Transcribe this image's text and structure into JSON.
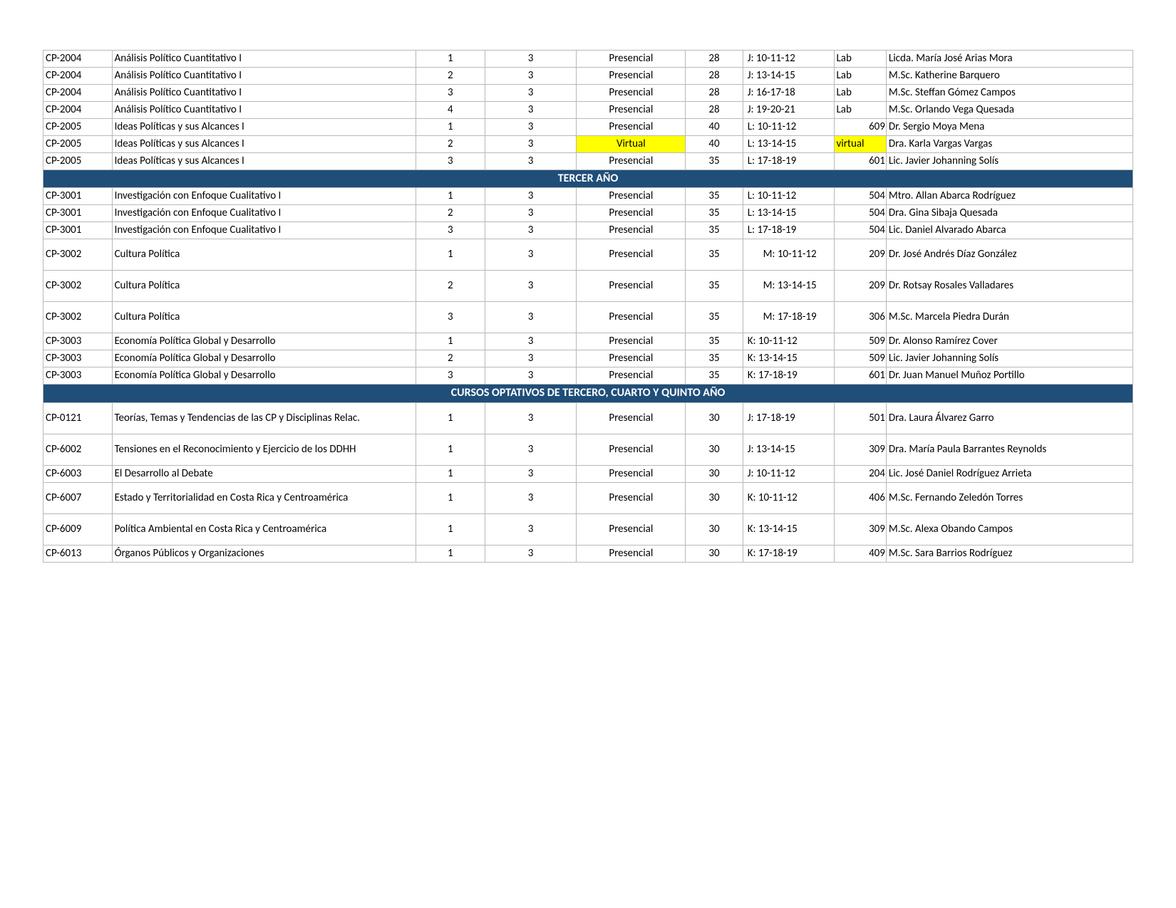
{
  "colors": {
    "section_bg": "#1f4e79",
    "section_fg": "#ffffff",
    "highlight_bg": "#ffff00",
    "border": "#b8b8b8",
    "text": "#000000",
    "page_bg": "#ffffff"
  },
  "typography": {
    "font_family": "Calibri, Arial, sans-serif",
    "base_fontsize_pt": 11,
    "header_fontsize_pt": 12,
    "header_weight": "bold"
  },
  "table": {
    "columns": [
      {
        "key": "code",
        "width_pct": 6.0,
        "align": "left"
      },
      {
        "key": "name",
        "width_pct": 26.5,
        "align": "left"
      },
      {
        "key": "group",
        "width_pct": 6.0,
        "align": "center"
      },
      {
        "key": "credits",
        "width_pct": 8.0,
        "align": "center"
      },
      {
        "key": "modality",
        "width_pct": 9.5,
        "align": "center"
      },
      {
        "key": "capacity",
        "width_pct": 5.0,
        "align": "center"
      },
      {
        "key": "schedule",
        "width_pct": 8.0,
        "align": "left"
      },
      {
        "key": "room",
        "width_pct": 4.5,
        "align": "right"
      },
      {
        "key": "instructor",
        "width_pct": 21.5,
        "align": "left"
      }
    ]
  },
  "rows": [
    {
      "code": "CP-2004",
      "name": "Análisis Político Cuantitativo I",
      "group": "1",
      "credits": "3",
      "modality": "Presencial",
      "capacity": "28",
      "schedule": "J: 10-11-12",
      "room": "Lab",
      "instructor": "Licda. María José Arias Mora",
      "room_is_lab": true
    },
    {
      "code": "CP-2004",
      "name": "Análisis Político Cuantitativo I",
      "group": "2",
      "credits": "3",
      "modality": "Presencial",
      "capacity": "28",
      "schedule": "J: 13-14-15",
      "room": "Lab",
      "instructor": "M.Sc. Katherine Barquero",
      "room_is_lab": true
    },
    {
      "code": "CP-2004",
      "name": "Análisis Político Cuantitativo I",
      "group": "3",
      "credits": "3",
      "modality": "Presencial",
      "capacity": "28",
      "schedule": "J: 16-17-18",
      "room": "Lab",
      "instructor": "M.Sc. Steffan Gómez Campos",
      "room_is_lab": true
    },
    {
      "code": "CP-2004",
      "name": "Análisis Político Cuantitativo I",
      "group": "4",
      "credits": "3",
      "modality": "Presencial",
      "capacity": "28",
      "schedule": "J: 19-20-21",
      "room": "Lab",
      "instructor": "M.Sc. Orlando Vega Quesada",
      "room_is_lab": true
    },
    {
      "code": "CP-2005",
      "name": "Ideas Políticas y sus Alcances I",
      "group": "1",
      "credits": "3",
      "modality": "Presencial",
      "capacity": "40",
      "schedule": "L: 10-11-12",
      "room": "609",
      "instructor": "Dr. Sergio Moya Mena"
    },
    {
      "code": "CP-2005",
      "name": "Ideas Políticas y sus Alcances I",
      "group": "2",
      "credits": "3",
      "modality": "Virtual",
      "modality_hl": true,
      "capacity": "40",
      "schedule": "L: 13-14-15",
      "room": "virtual",
      "room_hl": true,
      "room_is_lab": true,
      "instructor": "Dra. Karla Vargas Vargas"
    },
    {
      "code": "CP-2005",
      "name": "Ideas Políticas y sus Alcances I",
      "group": "3",
      "credits": "3",
      "modality": "Presencial",
      "capacity": "35",
      "schedule": "L: 17-18-19",
      "room": "601",
      "instructor": "Lic. Javier Johanning Solís"
    },
    {
      "section": "TERCER AÑO"
    },
    {
      "code": "CP-3001",
      "name": "Investigación con Enfoque Cualitativo I",
      "group": "1",
      "credits": "3",
      "modality": "Presencial",
      "capacity": "35",
      "schedule": "L: 10-11-12",
      "room": "504",
      "instructor": "Mtro. Allan Abarca Rodríguez"
    },
    {
      "code": "CP-3001",
      "name": "Investigación con Enfoque Cualitativo I",
      "group": "2",
      "credits": "3",
      "modality": "Presencial",
      "capacity": "35",
      "schedule": "L: 13-14-15",
      "room": "504",
      "instructor": "Dra. Gina Sibaja Quesada"
    },
    {
      "code": "CP-3001",
      "name": "Investigación con Enfoque Cualitativo I",
      "group": "3",
      "credits": "3",
      "modality": "Presencial",
      "capacity": "35",
      "schedule": "L: 17-18-19",
      "room": "504",
      "instructor": "Lic. Daniel Alvarado Abarca"
    },
    {
      "code": "CP-3002",
      "name": "Cultura Política",
      "group": "1",
      "credits": "3",
      "modality": "Presencial",
      "capacity": "35",
      "schedule": "M: 10-11-12",
      "room": "209",
      "instructor": "Dr. José Andrés Díaz González",
      "tall": true,
      "sched_center": true
    },
    {
      "code": "CP-3002",
      "name": "Cultura Política",
      "group": "2",
      "credits": "3",
      "modality": "Presencial",
      "capacity": "35",
      "schedule": "M: 13-14-15",
      "room": "209",
      "instructor": "Dr. Rotsay Rosales Valladares",
      "tall": true,
      "sched_center": true
    },
    {
      "code": "CP-3002",
      "name": "Cultura Política",
      "group": "3",
      "credits": "3",
      "modality": "Presencial",
      "capacity": "35",
      "schedule": "M: 17-18-19",
      "room": "306",
      "instructor": "M.Sc. Marcela Piedra Durán",
      "tall": true,
      "sched_center": true
    },
    {
      "code": "CP-3003",
      "name": "Economía Política Global y Desarrollo",
      "group": "1",
      "credits": "3",
      "modality": "Presencial",
      "capacity": "35",
      "schedule": "K: 10-11-12",
      "room": "509",
      "instructor": "Dr. Alonso Ramírez Cover"
    },
    {
      "code": "CP-3003",
      "name": "Economía Política Global y Desarrollo",
      "group": "2",
      "credits": "3",
      "modality": "Presencial",
      "capacity": "35",
      "schedule": "K: 13-14-15",
      "room": "509",
      "instructor": "Lic. Javier Johanning Solís"
    },
    {
      "code": "CP-3003",
      "name": "Economía Política Global y Desarrollo",
      "group": "3",
      "credits": "3",
      "modality": "Presencial",
      "capacity": "35",
      "schedule": "K: 17-18-19",
      "room": "601",
      "instructor": "Dr. Juan Manuel Muñoz Portillo"
    },
    {
      "section": "CURSOS OPTATIVOS DE TERCERO, CUARTO Y QUINTO AÑO"
    },
    {
      "code": "CP-0121",
      "name": "Teorías, Temas y Tendencias de las CP y Disciplinas Relac.",
      "group": "1",
      "credits": "3",
      "modality": "Presencial",
      "capacity": "30",
      "schedule": "J: 17-18-19",
      "room": "501",
      "instructor": "Dra. Laura Álvarez Garro",
      "tall": true
    },
    {
      "code": "CP-6002",
      "name": "Tensiones en el Reconocimiento y Ejercicio de los DDHH",
      "group": "1",
      "credits": "3",
      "modality": "Presencial",
      "capacity": "30",
      "schedule": "J: 13-14-15",
      "room": "309",
      "instructor": "Dra. María Paula Barrantes Reynolds",
      "tall": true
    },
    {
      "code": "CP-6003",
      "name": "El Desarrollo al Debate",
      "group": "1",
      "credits": "3",
      "modality": "Presencial",
      "capacity": "30",
      "schedule": "J: 10-11-12",
      "room": "204",
      "instructor": "Lic. José Daniel Rodríguez Arrieta"
    },
    {
      "code": "CP-6007",
      "name": "Estado y Territorialidad en Costa Rica y Centroamérica",
      "group": "1",
      "credits": "3",
      "modality": "Presencial",
      "capacity": "30",
      "schedule": "K: 10-11-12",
      "room": "406",
      "instructor": "M.Sc. Fernando Zeledón Torres",
      "tall": true
    },
    {
      "code": "CP-6009",
      "name": "Política Ambiental en Costa Rica y Centroamérica",
      "group": "1",
      "credits": "3",
      "modality": "Presencial",
      "capacity": "30",
      "schedule": "K: 13-14-15",
      "room": "309",
      "instructor": "M.Sc. Alexa Obando Campos",
      "tall": true
    },
    {
      "code": "CP-6013",
      "name": "Órganos Públicos y Organizaciones",
      "group": "1",
      "credits": "3",
      "modality": "Presencial",
      "capacity": "30",
      "schedule": "K: 17-18-19",
      "room": "409",
      "instructor": "M.Sc. Sara Barrios Rodríguez"
    }
  ]
}
